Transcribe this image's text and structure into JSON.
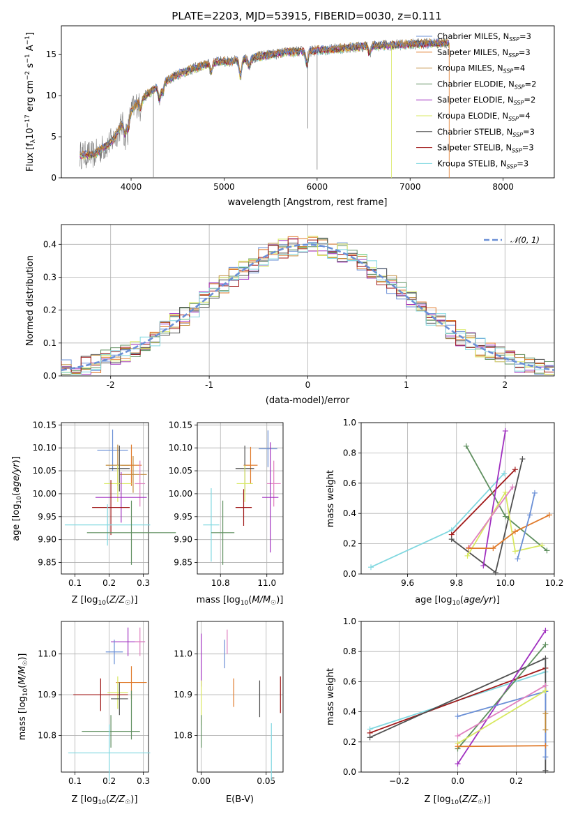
{
  "figure": {
    "title": "PLATE=2203, MJD=53915, FIBERID=0030, z=0.111"
  },
  "colors": {
    "c1": "#6a8fd6",
    "c2": "#e07a2a",
    "c3": "#c08a3a",
    "c4": "#5f8f5f",
    "c5": "#a030c0",
    "c6": "#d8e860",
    "c7": "#505050",
    "c8": "#a01818",
    "c9": "#80d8e0",
    "pink": "#e080c0"
  },
  "chart_data": [
    {
      "id": "spectrum",
      "type": "line",
      "xlabel": "wavelength [Angstrom, rest frame]",
      "ylabel": "Flux [f_λ10^-17 erg cm^-2 s^-1 A^-1]",
      "xlim": [
        3250,
        8550
      ],
      "ylim": [
        0,
        18.5
      ],
      "xticks": [
        4000,
        5000,
        6000,
        7000,
        8000
      ],
      "yticks": [
        0,
        5,
        10,
        15
      ],
      "legend_position": "top-right",
      "legend": [
        {
          "label": "Chabrier MILES, N",
          "sub": "SSP",
          "suffix": "=3",
          "color": "c1"
        },
        {
          "label": "Salpeter MILES, N",
          "sub": "SSP",
          "suffix": "=3",
          "color": "c2"
        },
        {
          "label": "Kroupa MILES, N",
          "sub": "SSP",
          "suffix": "=4",
          "color": "c3"
        },
        {
          "label": "Chabrier ELODIE, N",
          "sub": "SSP",
          "suffix": "=2",
          "color": "c4"
        },
        {
          "label": "Salpeter ELODIE, N",
          "sub": "SSP",
          "suffix": "=2",
          "color": "c5"
        },
        {
          "label": "Kroupa ELODIE, N",
          "sub": "SSP",
          "suffix": "=4",
          "color": "c6"
        },
        {
          "label": "Chabrier STELIB, N",
          "sub": "SSP",
          "suffix": "=3",
          "color": "c7"
        },
        {
          "label": "Salpeter STELIB, N",
          "sub": "SSP",
          "suffix": "=3",
          "color": "c8"
        },
        {
          "label": "Kroupa STELIB, N",
          "sub": "SSP",
          "suffix": "=3",
          "color": "c9"
        }
      ],
      "continuum": {
        "x": [
          3450,
          3600,
          3800,
          3950,
          4100,
          4300,
          4500,
          4700,
          4900,
          5100,
          5300,
          5500,
          5700,
          5900,
          6100,
          6300,
          6500,
          6700,
          6900,
          7100,
          7300,
          7420
        ],
        "y": [
          2.8,
          2.8,
          4.5,
          7.5,
          9.5,
          11.2,
          12.6,
          13.4,
          14.1,
          14.2,
          14.6,
          15.0,
          15.3,
          15.4,
          15.6,
          15.8,
          16.0,
          16.1,
          16.2,
          16.3,
          16.4,
          16.4
        ]
      }
    },
    {
      "id": "residual-histogram",
      "type": "bar",
      "xlabel": "(data-model)/error",
      "ylabel": "Normed distribution",
      "xlim": [
        -2.5,
        2.5
      ],
      "ylim": [
        0,
        0.46
      ],
      "xticks": [
        -2,
        -1,
        0,
        1,
        2
      ],
      "yticks": [
        0.0,
        0.1,
        0.2,
        0.3,
        0.4
      ],
      "legend_position": "top-right",
      "legend": [
        {
          "label": "𝒩(0, 1)",
          "color": "c1"
        }
      ],
      "bin_width": 0.1
    },
    {
      "id": "z-vs-age",
      "type": "scatter",
      "xlabel": "Z [log10(Z/Z☉)]",
      "ylabel": "age  [log10(age/yr)]",
      "xlim": [
        0.06,
        0.315
      ],
      "ylim": [
        9.825,
        10.155
      ],
      "xticks": [
        0.1,
        0.2,
        0.3
      ],
      "xtick_labels": [
        "0.1",
        "0.2",
        "0.3"
      ],
      "yticks": [
        9.85,
        9.9,
        9.95,
        10.0,
        10.05,
        10.1,
        10.15
      ],
      "ytick_labels": [
        "9.85",
        "9.90",
        "9.95",
        "10.00",
        "10.05",
        "10.10",
        "10.15"
      ],
      "points": [
        {
          "x": 0.21,
          "xerr": 0.045,
          "y": 10.095,
          "yerr": 0.045,
          "color": "c1"
        },
        {
          "x": 0.265,
          "xerr": 0.03,
          "y": 10.062,
          "yerr": 0.045,
          "color": "c2"
        },
        {
          "x": 0.225,
          "xerr": 0.035,
          "y": 10.062,
          "yerr": 0.045,
          "color": "c3"
        },
        {
          "x": 0.27,
          "xerr": 0.04,
          "y": 10.042,
          "yerr": 0.04,
          "color": "c3"
        },
        {
          "x": 0.23,
          "xerr": 0.03,
          "y": 10.055,
          "yerr": 0.05,
          "color": "c7"
        },
        {
          "x": 0.29,
          "xerr": 0.015,
          "y": 10.022,
          "yerr": 0.05,
          "color": "pink"
        },
        {
          "x": 0.225,
          "xerr": 0.04,
          "y": 10.022,
          "yerr": 0.04,
          "color": "c6"
        },
        {
          "x": 0.235,
          "xerr": 0.075,
          "y": 9.992,
          "yerr": 0.055,
          "color": "c5"
        },
        {
          "x": 0.205,
          "xerr": 0.055,
          "y": 9.97,
          "yerr": 0.06,
          "color": "c8"
        },
        {
          "x": 0.195,
          "xerr": 0.125,
          "y": 9.932,
          "yerr": 0.045,
          "color": "c9"
        },
        {
          "x": 0.265,
          "xerr": 0.13,
          "y": 9.915,
          "yerr": 0.07,
          "color": "c4"
        }
      ]
    },
    {
      "id": "mass-vs-age",
      "type": "scatter",
      "xlabel": "mass [log10(M/M☉)]",
      "ylabel": "",
      "xlim": [
        10.7,
        11.07
      ],
      "ylim": [
        9.825,
        10.155
      ],
      "xticks": [
        10.8,
        11.0
      ],
      "xtick_labels": [
        "10.8",
        "11.0"
      ],
      "yticks": [
        9.85,
        9.9,
        9.95,
        10.0,
        10.05,
        10.1,
        10.15
      ],
      "ytick_labels": [
        "9.85",
        "9.90",
        "9.95",
        "10.00",
        "10.05",
        "10.10",
        "10.15"
      ],
      "points": [
        {
          "x": 11.005,
          "xerr": 0.04,
          "y": 10.098,
          "yerr": 0.04,
          "color": "c1"
        },
        {
          "x": 10.93,
          "xerr": 0.03,
          "y": 10.062,
          "yerr": 0.04,
          "color": "c2"
        },
        {
          "x": 10.905,
          "xerr": 0.04,
          "y": 10.055,
          "yerr": 0.05,
          "color": "c7"
        },
        {
          "x": 10.905,
          "xerr": 0.035,
          "y": 10.022,
          "yerr": 0.04,
          "color": "c6"
        },
        {
          "x": 11.03,
          "xerr": 0.03,
          "y": 10.022,
          "yerr": 0.05,
          "color": "pink"
        },
        {
          "x": 11.015,
          "xerr": 0.035,
          "y": 9.992,
          "yerr": 0.12,
          "color": "c5"
        },
        {
          "x": 10.9,
          "xerr": 0.035,
          "y": 9.97,
          "yerr": 0.04,
          "color": "c8"
        },
        {
          "x": 10.76,
          "xerr": 0.035,
          "y": 9.932,
          "yerr": 0.08,
          "color": "c9"
        },
        {
          "x": 10.81,
          "xerr": 0.05,
          "y": 9.915,
          "yerr": 0.07,
          "color": "c4"
        }
      ]
    },
    {
      "id": "age-vs-mass-weight",
      "type": "line",
      "xlabel": "age  [log10(age/yr)]",
      "ylabel": "mass weight",
      "xlim": [
        9.41,
        10.2
      ],
      "ylim": [
        0,
        1.0
      ],
      "xticks": [
        9.6,
        9.8,
        10.0,
        10.2
      ],
      "xtick_labels": [
        "9.6",
        "9.8",
        "10.0",
        "10.2"
      ],
      "yticks": [
        0,
        0.2,
        0.4,
        0.6,
        0.8,
        1.0
      ],
      "ytick_labels": [
        "0.0",
        "0.2",
        "0.4",
        "0.6",
        "0.8",
        "1.0"
      ],
      "series": [
        {
          "color": "c9",
          "x": [
            9.45,
            9.78,
            9.995
          ],
          "y": [
            0.045,
            0.29,
            0.665
          ]
        },
        {
          "color": "c8",
          "x": [
            9.78,
            10.04
          ],
          "y": [
            0.26,
            0.69
          ]
        },
        {
          "color": "c7",
          "x": [
            9.78,
            9.96,
            10.07
          ],
          "y": [
            0.23,
            0.01,
            0.76
          ]
        },
        {
          "color": "c4",
          "x": [
            9.84,
            10.0,
            10.17
          ],
          "y": [
            0.845,
            0.38,
            0.155
          ]
        },
        {
          "color": "c5",
          "x": [
            9.91,
            10.0
          ],
          "y": [
            0.055,
            0.945
          ]
        },
        {
          "color": "c6",
          "x": [
            9.845,
            10.0,
            10.04,
            10.15
          ],
          "y": [
            0.12,
            0.54,
            0.15,
            0.19
          ]
        },
        {
          "color": "pink",
          "x": [
            9.85,
            10.03
          ],
          "y": [
            0.175,
            0.575
          ]
        },
        {
          "color": "c2",
          "x": [
            9.85,
            9.95,
            10.04,
            10.18
          ],
          "y": [
            0.17,
            0.17,
            0.28,
            0.39
          ]
        },
        {
          "color": "c1",
          "x": [
            10.05,
            10.1,
            10.12
          ],
          "y": [
            0.1,
            0.39,
            0.535
          ]
        }
      ]
    },
    {
      "id": "z-vs-mass",
      "type": "scatter",
      "xlabel": "Z [log10(Z/Z☉)]",
      "ylabel": "mass [log10(M/M☉)]",
      "xlim": [
        0.06,
        0.315
      ],
      "ylim": [
        10.71,
        11.08
      ],
      "xticks": [
        0.1,
        0.2,
        0.3
      ],
      "xtick_labels": [
        "0.1",
        "0.2",
        "0.3"
      ],
      "yticks": [
        10.8,
        10.9,
        11.0
      ],
      "ytick_labels": [
        "10.8",
        "10.9",
        "11.0"
      ],
      "points": [
        {
          "x": 0.255,
          "xerr": 0.05,
          "y": 11.03,
          "yerr": 0.035,
          "color": "c5"
        },
        {
          "x": 0.29,
          "xerr": 0.015,
          "y": 11.03,
          "yerr": 0.035,
          "color": "pink"
        },
        {
          "x": 0.215,
          "xerr": 0.025,
          "y": 11.005,
          "yerr": 0.03,
          "color": "c1"
        },
        {
          "x": 0.265,
          "xerr": 0.045,
          "y": 10.93,
          "yerr": 0.04,
          "color": "c2"
        },
        {
          "x": 0.225,
          "xerr": 0.03,
          "y": 10.905,
          "yerr": 0.04,
          "color": "c6"
        },
        {
          "x": 0.23,
          "xerr": 0.025,
          "y": 10.89,
          "yerr": 0.04,
          "color": "c7"
        },
        {
          "x": 0.175,
          "xerr": 0.08,
          "y": 10.9,
          "yerr": 0.04,
          "color": "c8"
        },
        {
          "x": 0.205,
          "xerr": 0.085,
          "y": 10.81,
          "yerr": 0.04,
          "color": "c4"
        },
        {
          "x": 0.265,
          "xerr": 0.0,
          "y": 10.85,
          "yerr": 0.06,
          "color": "c4"
        },
        {
          "x": 0.2,
          "xerr": 0.12,
          "y": 10.757,
          "yerr": 0.07,
          "color": "c9"
        }
      ]
    },
    {
      "id": "ebv-vs-mass",
      "type": "scatter",
      "xlabel": "E(B-V)",
      "ylabel": "",
      "xlim": [
        -0.003,
        0.063
      ],
      "ylim": [
        10.71,
        11.08
      ],
      "xticks": [
        0.0,
        0.05
      ],
      "xtick_labels": [
        "0.00",
        "0.05"
      ],
      "yticks": [
        10.8,
        10.9,
        11.0
      ],
      "ytick_labels": [
        "10.8",
        "10.9",
        "11.0"
      ],
      "points": [
        {
          "x": 0.0,
          "y": 10.985,
          "yerr": 0.065,
          "color": "c5"
        },
        {
          "x": 0.0,
          "y": 10.88,
          "yerr": 0.055,
          "color": "c6"
        },
        {
          "x": 0.0,
          "y": 10.81,
          "yerr": 0.04,
          "color": "c4"
        },
        {
          "x": 0.018,
          "y": 11.0,
          "yerr": 0.035,
          "color": "c1"
        },
        {
          "x": 0.02,
          "y": 11.03,
          "yerr": 0.03,
          "color": "pink"
        },
        {
          "x": 0.025,
          "y": 10.905,
          "yerr": 0.035,
          "color": "c2"
        },
        {
          "x": 0.045,
          "y": 10.89,
          "yerr": 0.045,
          "color": "c7"
        },
        {
          "x": 0.061,
          "y": 10.9,
          "yerr": 0.045,
          "color": "c8"
        },
        {
          "x": 0.054,
          "y": 10.76,
          "yerr": 0.07,
          "color": "c9"
        }
      ]
    },
    {
      "id": "z-vs-mass-weight",
      "type": "line",
      "xlabel": "Z [log10(Z/Z☉)]",
      "ylabel": "mass weight",
      "xlim": [
        -0.33,
        0.33
      ],
      "ylim": [
        0,
        1.0
      ],
      "xticks": [
        -0.2,
        0.0,
        0.2
      ],
      "xtick_labels": [
        "−0.2",
        "0.0",
        "0.2"
      ],
      "yticks": [
        0,
        0.2,
        0.4,
        0.6,
        0.8,
        1.0
      ],
      "ytick_labels": [
        "0.0",
        "0.2",
        "0.4",
        "0.6",
        "0.8",
        "1.0"
      ],
      "series": [
        {
          "color": "c9",
          "x": [
            -0.3,
            0.3
          ],
          "y": [
            0.285,
            0.665
          ]
        },
        {
          "color": "c8",
          "x": [
            -0.3,
            0.3
          ],
          "y": [
            0.26,
            0.69
          ]
        },
        {
          "color": "c7",
          "x": [
            -0.3,
            0.3,
            0.3
          ],
          "y": [
            0.23,
            0.755,
            0.01
          ]
        },
        {
          "color": "c5",
          "x": [
            0.0,
            0.3
          ],
          "y": [
            0.055,
            0.94
          ]
        },
        {
          "color": "c4",
          "x": [
            0.0,
            0.3
          ],
          "y": [
            0.155,
            0.845
          ]
        },
        {
          "color": "c1",
          "x": [
            0.0,
            0.3,
            0.3
          ],
          "y": [
            0.37,
            0.535,
            0.1
          ]
        },
        {
          "color": "pink",
          "x": [
            0.0,
            0.3
          ],
          "y": [
            0.24,
            0.575
          ]
        },
        {
          "color": "c6",
          "x": [
            0.0,
            0.3
          ],
          "y": [
            0.19,
            0.54
          ]
        },
        {
          "color": "c2",
          "x": [
            0.0,
            0.3
          ],
          "y": [
            0.17,
            0.175
          ]
        },
        {
          "color": "c3",
          "x": [
            0.3,
            0.3
          ],
          "y": [
            0.28,
            0.39
          ]
        }
      ]
    }
  ]
}
